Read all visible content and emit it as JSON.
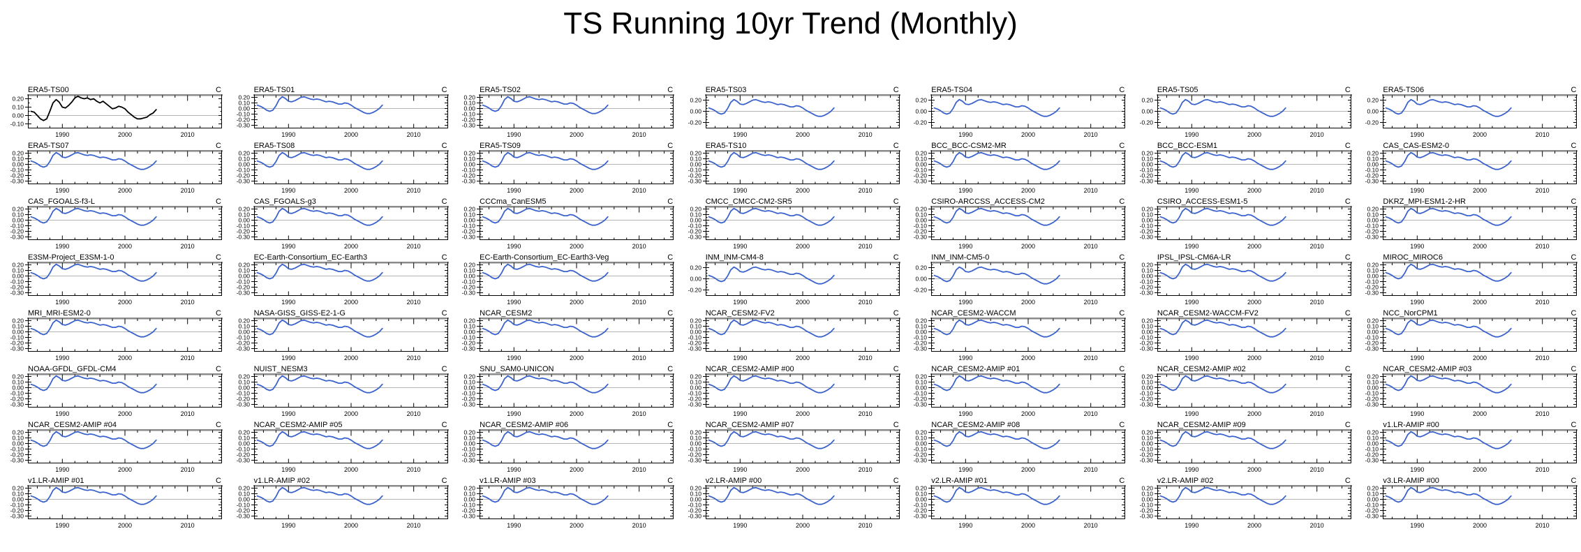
{
  "page_title": "TS Running 10yr Trend (Monthly)",
  "units_label": "C",
  "colors": {
    "background": "#ffffff",
    "axis": "#000000",
    "axis_top": "#8a8a8a",
    "zero_line": "#b4b4b4",
    "text": "#000000",
    "line": {
      "blue": "#3b63cb",
      "black": "#000000"
    }
  },
  "chart_data": {
    "type": "line",
    "title": "TS Running 10yr Trend (Monthly)",
    "ylabel": "C",
    "grid": false,
    "legend": "none",
    "x_axis": {
      "lim": [
        1984.5,
        2015.5
      ],
      "major_ticks": [
        1990,
        2000,
        2010
      ],
      "minor_step": 2
    },
    "axis_presets": {
      "four": {
        "y_ticks": [
          0.2,
          0.1,
          0.0,
          -0.1
        ],
        "ylim": [
          -0.15,
          0.25
        ],
        "minor_step": 0.05
      },
      "six": {
        "y_ticks": [
          0.2,
          0.1,
          0.0,
          -0.1,
          -0.2,
          -0.3
        ],
        "ylim": [
          -0.35,
          0.25
        ],
        "minor_step": 0.05
      },
      "three": {
        "y_ticks": [
          0.2,
          0.0,
          -0.2
        ],
        "ylim": [
          -0.3,
          0.3
        ],
        "minor_step": 0.05
      }
    },
    "series": {
      "x": [
        1985,
        1985.5,
        1986,
        1986.5,
        1987,
        1987.5,
        1988,
        1988.5,
        1989,
        1989.5,
        1990,
        1990.5,
        1991,
        1991.5,
        1992,
        1992.5,
        1993,
        1993.5,
        1994,
        1994.5,
        1995,
        1995.5,
        1996,
        1996.5,
        1997,
        1997.5,
        1998,
        1998.5,
        1999,
        1999.5,
        2000,
        2000.5,
        2001,
        2001.5,
        2002,
        2002.5,
        2003,
        2003.5,
        2004,
        2004.5,
        2005
      ],
      "common": [
        0.06,
        0.04,
        0.01,
        -0.03,
        -0.05,
        -0.03,
        0.05,
        0.16,
        0.21,
        0.18,
        0.13,
        0.12,
        0.14,
        0.17,
        0.2,
        0.21,
        0.19,
        0.17,
        0.16,
        0.17,
        0.16,
        0.14,
        0.12,
        0.13,
        0.12,
        0.1,
        0.08,
        0.08,
        0.1,
        0.09,
        0.06,
        0.02,
        -0.01,
        -0.04,
        -0.07,
        -0.09,
        -0.09,
        -0.07,
        -0.04,
        0.0,
        0.06
      ],
      "era5_ts00": [
        0.05,
        0.04,
        0.0,
        -0.04,
        -0.06,
        -0.04,
        0.05,
        0.15,
        0.19,
        0.16,
        0.1,
        0.09,
        0.12,
        0.16,
        0.21,
        0.23,
        0.21,
        0.2,
        0.21,
        0.19,
        0.2,
        0.17,
        0.15,
        0.17,
        0.14,
        0.11,
        0.08,
        0.09,
        0.11,
        0.1,
        0.08,
        0.04,
        0.01,
        -0.02,
        -0.04,
        -0.04,
        -0.03,
        -0.02,
        0.01,
        0.03,
        0.07
      ]
    },
    "panels": [
      {
        "title": "ERA5-TS00",
        "color": "black",
        "axis": "four",
        "series": "era5_ts00"
      },
      {
        "title": "ERA5-TS01",
        "color": "blue",
        "axis": "six",
        "series": "common"
      },
      {
        "title": "ERA5-TS02",
        "color": "blue",
        "axis": "six",
        "series": "common"
      },
      {
        "title": "ERA5-TS03",
        "color": "blue",
        "axis": "three",
        "series": "common"
      },
      {
        "title": "ERA5-TS04",
        "color": "blue",
        "axis": "three",
        "series": "common"
      },
      {
        "title": "ERA5-TS05",
        "color": "blue",
        "axis": "three",
        "series": "common"
      },
      {
        "title": "ERA5-TS06",
        "color": "blue",
        "axis": "three",
        "series": "common"
      },
      {
        "title": "ERA5-TS07",
        "color": "blue",
        "axis": "six",
        "series": "common"
      },
      {
        "title": "ERA5-TS08",
        "color": "blue",
        "axis": "six",
        "series": "common"
      },
      {
        "title": "ERA5-TS09",
        "color": "blue",
        "axis": "six",
        "series": "common"
      },
      {
        "title": "ERA5-TS10",
        "color": "blue",
        "axis": "six",
        "series": "common"
      },
      {
        "title": "BCC_BCC-CSM2-MR",
        "color": "blue",
        "axis": "six",
        "series": "common"
      },
      {
        "title": "BCC_BCC-ESM1",
        "color": "blue",
        "axis": "six",
        "series": "common"
      },
      {
        "title": "CAS_CAS-ESM2-0",
        "color": "blue",
        "axis": "six",
        "series": "common"
      },
      {
        "title": "CAS_FGOALS-f3-L",
        "color": "blue",
        "axis": "six",
        "series": "common"
      },
      {
        "title": "CAS_FGOALS-g3",
        "color": "blue",
        "axis": "six",
        "series": "common"
      },
      {
        "title": "CCCma_CanESM5",
        "color": "blue",
        "axis": "six",
        "series": "common"
      },
      {
        "title": "CMCC_CMCC-CM2-SR5",
        "color": "blue",
        "axis": "six",
        "series": "common"
      },
      {
        "title": "CSIRO-ARCCSS_ACCESS-CM2",
        "color": "blue",
        "axis": "six",
        "series": "common"
      },
      {
        "title": "CSIRO_ACCESS-ESM1-5",
        "color": "blue",
        "axis": "six",
        "series": "common"
      },
      {
        "title": "DKRZ_MPI-ESM1-2-HR",
        "color": "blue",
        "axis": "six",
        "series": "common"
      },
      {
        "title": "E3SM-Project_E3SM-1-0",
        "color": "blue",
        "axis": "six",
        "series": "common"
      },
      {
        "title": "EC-Earth-Consortium_EC-Earth3",
        "color": "blue",
        "axis": "six",
        "series": "common"
      },
      {
        "title": "EC-Earth-Consortium_EC-Earth3-Veg",
        "color": "blue",
        "axis": "six",
        "series": "common"
      },
      {
        "title": "INM_INM-CM4-8",
        "color": "blue",
        "axis": "three",
        "series": "common"
      },
      {
        "title": "INM_INM-CM5-0",
        "color": "blue",
        "axis": "three",
        "series": "common"
      },
      {
        "title": "IPSL_IPSL-CM6A-LR",
        "color": "blue",
        "axis": "six",
        "series": "common"
      },
      {
        "title": "MIROC_MIROC6",
        "color": "blue",
        "axis": "six",
        "series": "common"
      },
      {
        "title": "MRI_MRI-ESM2-0",
        "color": "blue",
        "axis": "six",
        "series": "common"
      },
      {
        "title": "NASA-GISS_GISS-E2-1-G",
        "color": "blue",
        "axis": "six",
        "series": "common"
      },
      {
        "title": "NCAR_CESM2",
        "color": "blue",
        "axis": "six",
        "series": "common"
      },
      {
        "title": "NCAR_CESM2-FV2",
        "color": "blue",
        "axis": "six",
        "series": "common"
      },
      {
        "title": "NCAR_CESM2-WACCM",
        "color": "blue",
        "axis": "six",
        "series": "common"
      },
      {
        "title": "NCAR_CESM2-WACCM-FV2",
        "color": "blue",
        "axis": "six",
        "series": "common"
      },
      {
        "title": "NCC_NorCPM1",
        "color": "blue",
        "axis": "six",
        "series": "common"
      },
      {
        "title": "NOAA-GFDL_GFDL-CM4",
        "color": "blue",
        "axis": "six",
        "series": "common"
      },
      {
        "title": "NUIST_NESM3",
        "color": "blue",
        "axis": "six",
        "series": "common"
      },
      {
        "title": "SNU_SAM0-UNICON",
        "color": "blue",
        "axis": "six",
        "series": "common"
      },
      {
        "title": "NCAR_CESM2-AMIP #00",
        "color": "blue",
        "axis": "six",
        "series": "common"
      },
      {
        "title": "NCAR_CESM2-AMIP #01",
        "color": "blue",
        "axis": "six",
        "series": "common"
      },
      {
        "title": "NCAR_CESM2-AMIP #02",
        "color": "blue",
        "axis": "six",
        "series": "common"
      },
      {
        "title": "NCAR_CESM2-AMIP #03",
        "color": "blue",
        "axis": "six",
        "series": "common"
      },
      {
        "title": "NCAR_CESM2-AMIP #04",
        "color": "blue",
        "axis": "six",
        "series": "common"
      },
      {
        "title": "NCAR_CESM2-AMIP #05",
        "color": "blue",
        "axis": "six",
        "series": "common"
      },
      {
        "title": "NCAR_CESM2-AMIP #06",
        "color": "blue",
        "axis": "six",
        "series": "common"
      },
      {
        "title": "NCAR_CESM2-AMIP #07",
        "color": "blue",
        "axis": "six",
        "series": "common"
      },
      {
        "title": "NCAR_CESM2-AMIP #08",
        "color": "blue",
        "axis": "six",
        "series": "common"
      },
      {
        "title": "NCAR_CESM2-AMIP #09",
        "color": "blue",
        "axis": "six",
        "series": "common"
      },
      {
        "title": "v1.LR-AMIP #00",
        "color": "blue",
        "axis": "six",
        "series": "common"
      },
      {
        "title": "v1.LR-AMIP #01",
        "color": "blue",
        "axis": "six",
        "series": "common"
      },
      {
        "title": "v1.LR-AMIP #02",
        "color": "blue",
        "axis": "six",
        "series": "common"
      },
      {
        "title": "v1.LR-AMIP #03",
        "color": "blue",
        "axis": "six",
        "series": "common"
      },
      {
        "title": "v2.LR-AMIP #00",
        "color": "blue",
        "axis": "six",
        "series": "common"
      },
      {
        "title": "v2.LR-AMIP #01",
        "color": "blue",
        "axis": "six",
        "series": "common"
      },
      {
        "title": "v2.LR-AMIP #02",
        "color": "blue",
        "axis": "six",
        "series": "common"
      },
      {
        "title": "v3.LR-AMIP #00",
        "color": "blue",
        "axis": "six",
        "series": "common"
      }
    ]
  }
}
